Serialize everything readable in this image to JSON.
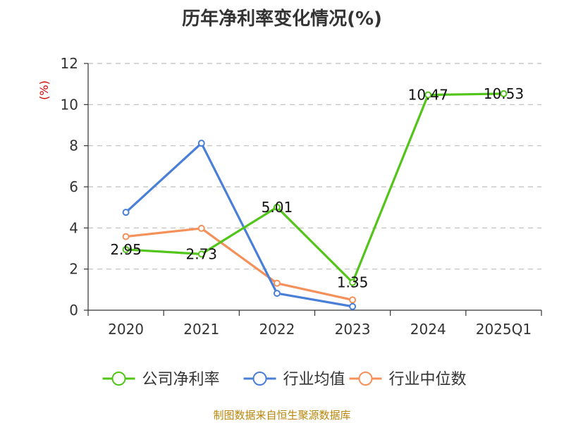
{
  "chart_data": {
    "type": "line",
    "title": "历年净利率变化情况(%)",
    "ylabel": "(%)",
    "categories": [
      "2020",
      "2021",
      "2022",
      "2023",
      "2024",
      "2025Q1"
    ],
    "ylim": [
      0,
      12
    ],
    "yticks": [
      0,
      2,
      4,
      6,
      8,
      10,
      12
    ],
    "grid": true,
    "legend_position": "bottom",
    "series": [
      {
        "name": "公司净利率",
        "color": "#52c41a",
        "values": [
          2.95,
          2.73,
          5.01,
          1.35,
          10.47,
          10.53
        ],
        "labels": [
          "2.95",
          "2.73",
          "5.01",
          "1.35",
          "10.47",
          "10.53"
        ]
      },
      {
        "name": "行业均值",
        "color": "#4a7fd8",
        "values": [
          4.76,
          8.12,
          0.82,
          0.18,
          null,
          null
        ]
      },
      {
        "name": "行业中位数",
        "color": "#f4905a",
        "values": [
          3.58,
          3.98,
          1.31,
          0.5,
          null,
          null
        ]
      }
    ]
  },
  "footer": {
    "source": "制图数据来自恒生聚源数据库"
  }
}
